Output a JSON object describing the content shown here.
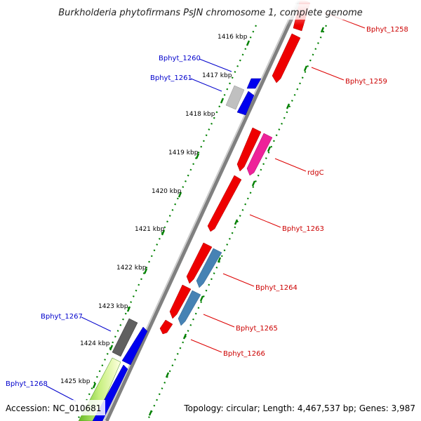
{
  "title": "Burkholderia phytofirmans PsJN chromosome 1, complete genome",
  "footer": {
    "accession": "Accession: NC_010681",
    "topology": "Topology: circular; Length: 4,467,537 bp; Genes: 3,987"
  },
  "colors": {
    "backbone": "#808080",
    "forward_label": "#cc0000",
    "reverse_label": "#0000cc",
    "tick": "#008000"
  },
  "kbp_ticks": [
    "1416 kbp",
    "1417 kbp",
    "1418 kbp",
    "1419 kbp",
    "1420 kbp",
    "1421 kbp",
    "1422 kbp",
    "1423 kbp",
    "1424 kbp",
    "1425 kbp"
  ],
  "gene_labels": {
    "forward": [
      "Bphyt_1258",
      "Bphyt_1259",
      "rdgC",
      "Bphyt_1263",
      "Bphyt_1264",
      "Bphyt_1265",
      "Bphyt_1266"
    ],
    "reverse": [
      "Bphyt_1260",
      "Bphyt_1261",
      "Bphyt_1267",
      "Bphyt_1268"
    ]
  }
}
